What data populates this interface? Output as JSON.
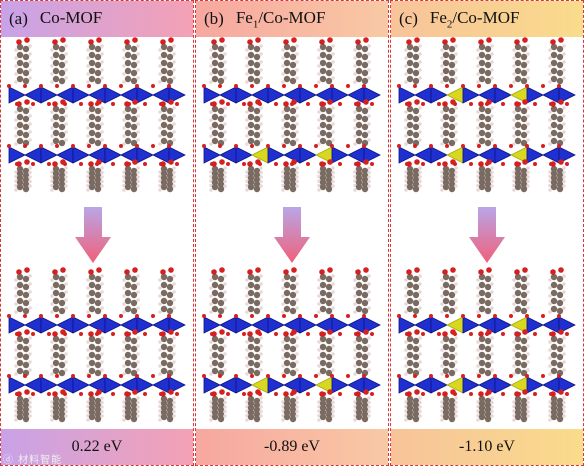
{
  "panels": [
    {
      "label": "(a)",
      "title_main": "Co-MOF",
      "title_sub": "",
      "title_rest": "",
      "energy": "0.22 eV",
      "header_gradient": [
        "#c8a2e8",
        "#f4a1b4"
      ],
      "footer_gradient": [
        "#c8a2e8",
        "#f4a1b4"
      ],
      "fe_sites": 0
    },
    {
      "label": "(b)",
      "title_main": "Fe",
      "title_sub": "1",
      "title_rest": "/Co-MOF",
      "energy": "-0.89 eV",
      "header_gradient": [
        "#f7a7a0",
        "#f8c9a4"
      ],
      "footer_gradient": [
        "#f7a7a0",
        "#f8c9a4"
      ],
      "fe_sites": 1
    },
    {
      "label": "(c)",
      "title_main": "Fe",
      "title_sub": "2",
      "title_rest": "/Co-MOF",
      "energy": "-1.10 eV",
      "header_gradient": [
        "#f8c39a",
        "#f9dc8c"
      ],
      "footer_gradient": [
        "#f8c39a",
        "#f9dc8c"
      ],
      "fe_sites": 2
    }
  ],
  "colors": {
    "co_polyhedra": "#1f2fd0",
    "fe_polyhedra": "#d8d81e",
    "carbon": "#7a6b62",
    "oxygen": "#d42020",
    "hydrogen": "#e8d8d8",
    "arrow_top": "#b9a6e6",
    "arrow_bottom": "#f0607a"
  },
  "watermark": "ⓓ 材料智能"
}
